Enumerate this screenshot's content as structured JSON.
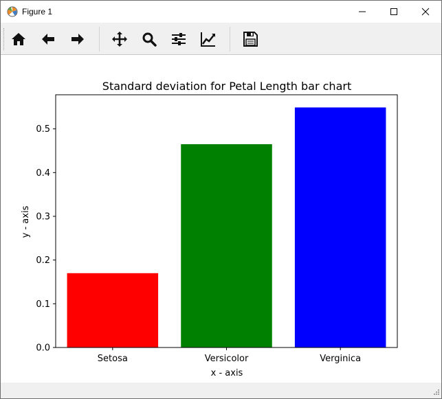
{
  "window": {
    "title": "Figure 1"
  },
  "toolbar": {
    "buttons": [
      {
        "name": "home-button",
        "icon": "home-icon"
      },
      {
        "name": "back-button",
        "icon": "arrow-left-icon"
      },
      {
        "name": "forward-button",
        "icon": "arrow-right-icon"
      },
      {
        "name": "pan-button",
        "icon": "move-icon"
      },
      {
        "name": "zoom-button",
        "icon": "magnifier-icon"
      },
      {
        "name": "configure-subplots-button",
        "icon": "sliders-icon"
      },
      {
        "name": "edit-axis-button",
        "icon": "line-chart-icon"
      },
      {
        "name": "save-button",
        "icon": "floppy-disk-icon"
      }
    ]
  },
  "chart_data": {
    "type": "bar",
    "title": "Standard deviation for Petal Length bar chart",
    "xlabel": "x - axis",
    "ylabel": "y - axis",
    "categories": [
      "Setosa",
      "Versicolor",
      "Verginica"
    ],
    "values": [
      0.17,
      0.465,
      0.549
    ],
    "colors": [
      "#ff0000",
      "#008000",
      "#0000ff"
    ],
    "ylim": [
      0,
      0.578
    ],
    "yticks": [
      "0.0",
      "0.1",
      "0.2",
      "0.3",
      "0.4",
      "0.5"
    ],
    "grid": false
  }
}
